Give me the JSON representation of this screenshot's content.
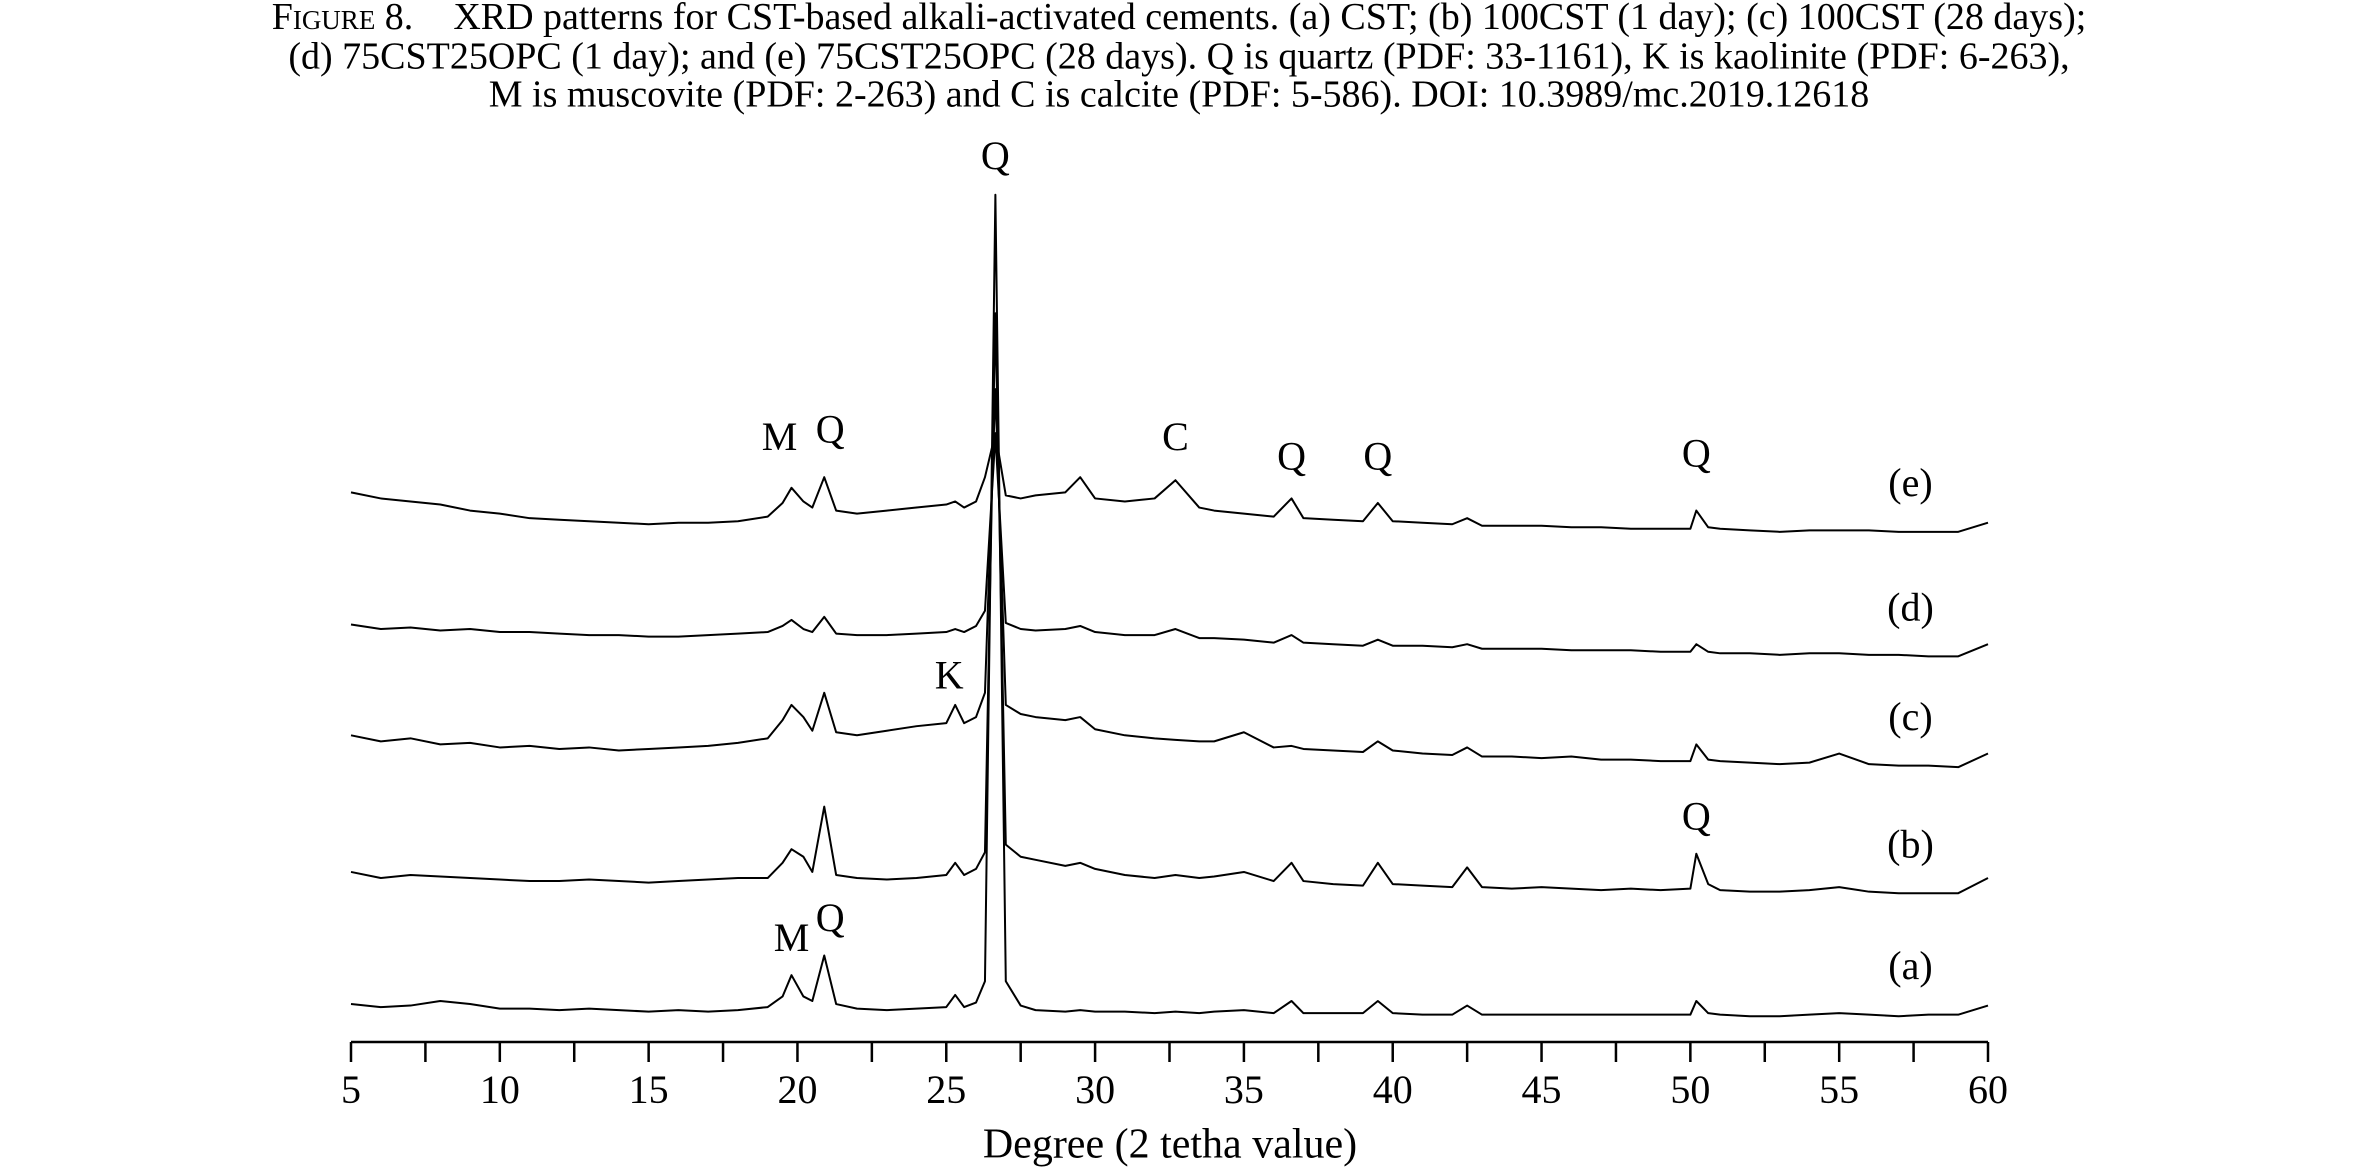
{
  "chart_data": {
    "type": "line",
    "caption_label": "Figure 8.",
    "title": [
      "XRD patterns for CST-based alkali-activated cements. (a) CST; (b) 100CST (1 day); (c) 100CST (28 days);",
      "(d) 75CST25OPC (1 day); and (e) 75CST25OPC (28 days). Q is quartz (PDF: 33-1161), K is kaolinite (PDF: 6-263),",
      "M is muscovite (PDF: 2-263) and C is calcite (PDF: 5-586). DOI: 10.3989/mc.2019.12618"
    ],
    "x_label": "Degree (2 tetha value)",
    "xlim": [
      5,
      60
    ],
    "xticks": [
      5,
      10,
      15,
      20,
      25,
      30,
      35,
      40,
      45,
      50,
      55,
      60
    ],
    "xminorticks": [
      7.5,
      12.5,
      17.5,
      22.5,
      27.5,
      32.5,
      37.5,
      42.5,
      47.5,
      52.5,
      57.5
    ],
    "ylim": [
      0,
      600
    ],
    "x": [
      5,
      6,
      7,
      8,
      9,
      10,
      11,
      12,
      13,
      14,
      15,
      16,
      17,
      18,
      19,
      19.5,
      19.8,
      20.2,
      20.5,
      20.9,
      21.3,
      22,
      23,
      24,
      25,
      25.3,
      25.6,
      26,
      26.3,
      26.65,
      27,
      27.5,
      28,
      29,
      29.5,
      30,
      31,
      32,
      32.7,
      33.5,
      34,
      35,
      36,
      36.6,
      37,
      38,
      39,
      39.5,
      40,
      41,
      42,
      42.5,
      43,
      44,
      45,
      46,
      47,
      48,
      49,
      50,
      50.2,
      50.6,
      51,
      52,
      53,
      54,
      55,
      56,
      57,
      58,
      59,
      60
    ],
    "series": [
      {
        "name": "(a)",
        "color": "#000000",
        "values": [
          25,
          23,
          24,
          27,
          25,
          22,
          22,
          21,
          22,
          21,
          20,
          21,
          20,
          21,
          23,
          30,
          44,
          30,
          27,
          57,
          25,
          22,
          21,
          22,
          23,
          31,
          23,
          26,
          40,
          558,
          40,
          24,
          21,
          20,
          21,
          20,
          20,
          19,
          20,
          19,
          20,
          21,
          19,
          27,
          19,
          19,
          19,
          27,
          19,
          18,
          18,
          24,
          18,
          18,
          18,
          18,
          18,
          18,
          18,
          18,
          27,
          19,
          18,
          17,
          17,
          18,
          19,
          18,
          17,
          18,
          18,
          24
        ]
      },
      {
        "name": "(b)",
        "color": "#000000",
        "values": [
          112,
          108,
          110,
          109,
          108,
          107,
          106,
          106,
          107,
          106,
          105,
          106,
          107,
          108,
          108,
          118,
          127,
          122,
          112,
          155,
          110,
          108,
          107,
          108,
          110,
          118,
          110,
          114,
          125,
          480,
          130,
          122,
          120,
          116,
          118,
          114,
          110,
          108,
          110,
          108,
          109,
          112,
          106,
          118,
          106,
          104,
          103,
          118,
          104,
          103,
          102,
          115,
          102,
          101,
          102,
          101,
          100,
          101,
          100,
          101,
          124,
          104,
          100,
          99,
          99,
          100,
          102,
          99,
          98,
          98,
          98,
          108
        ]
      },
      {
        "name": "(c)",
        "color": "#000000",
        "values": [
          202,
          198,
          200,
          196,
          197,
          194,
          195,
          193,
          194,
          192,
          193,
          194,
          195,
          197,
          200,
          212,
          222,
          214,
          205,
          230,
          204,
          202,
          205,
          208,
          210,
          222,
          210,
          214,
          230,
          430,
          222,
          216,
          214,
          212,
          214,
          206,
          202,
          200,
          199,
          198,
          198,
          204,
          194,
          195,
          193,
          192,
          191,
          198,
          192,
          190,
          189,
          194,
          188,
          188,
          187,
          188,
          186,
          186,
          185,
          185,
          196,
          186,
          185,
          184,
          183,
          184,
          190,
          183,
          182,
          182,
          181,
          190
        ]
      },
      {
        "name": "(d)",
        "color": "#000000",
        "values": [
          275,
          272,
          273,
          271,
          272,
          270,
          270,
          269,
          268,
          268,
          267,
          267,
          268,
          269,
          270,
          274,
          278,
          272,
          270,
          280,
          269,
          268,
          268,
          269,
          270,
          272,
          270,
          274,
          284,
          400,
          276,
          272,
          271,
          272,
          274,
          270,
          268,
          268,
          272,
          266,
          266,
          265,
          263,
          268,
          263,
          262,
          261,
          265,
          261,
          261,
          260,
          262,
          259,
          259,
          259,
          258,
          258,
          258,
          257,
          257,
          262,
          257,
          256,
          256,
          255,
          256,
          256,
          255,
          255,
          254,
          254,
          262
        ]
      },
      {
        "name": "(e)",
        "color": "#000000",
        "values": [
          362,
          358,
          356,
          354,
          350,
          348,
          345,
          344,
          343,
          342,
          341,
          342,
          342,
          343,
          346,
          355,
          365,
          356,
          352,
          372,
          350,
          348,
          350,
          352,
          354,
          356,
          352,
          356,
          372,
          401,
          360,
          358,
          360,
          362,
          372,
          358,
          356,
          358,
          370,
          352,
          350,
          348,
          346,
          358,
          345,
          344,
          343,
          355,
          343,
          342,
          341,
          345,
          340,
          340,
          340,
          339,
          339,
          338,
          338,
          338,
          350,
          339,
          338,
          337,
          336,
          337,
          337,
          337,
          336,
          336,
          336,
          342
        ]
      }
    ],
    "annotations": [
      {
        "text": "Q",
        "x": 26.65,
        "y": 581
      },
      {
        "text": "M",
        "x": 19.4,
        "y": 396
      },
      {
        "text": "Q",
        "x": 21.1,
        "y": 401
      },
      {
        "text": "C",
        "x": 32.7,
        "y": 396
      },
      {
        "text": "Q",
        "x": 36.6,
        "y": 383
      },
      {
        "text": "Q",
        "x": 39.5,
        "y": 383
      },
      {
        "text": "Q",
        "x": 50.2,
        "y": 385
      },
      {
        "text": "K",
        "x": 25.1,
        "y": 239
      },
      {
        "text": "Q",
        "x": 50.2,
        "y": 146
      },
      {
        "text": "M",
        "x": 19.8,
        "y": 66
      },
      {
        "text": "Q",
        "x": 21.1,
        "y": 79
      }
    ]
  }
}
